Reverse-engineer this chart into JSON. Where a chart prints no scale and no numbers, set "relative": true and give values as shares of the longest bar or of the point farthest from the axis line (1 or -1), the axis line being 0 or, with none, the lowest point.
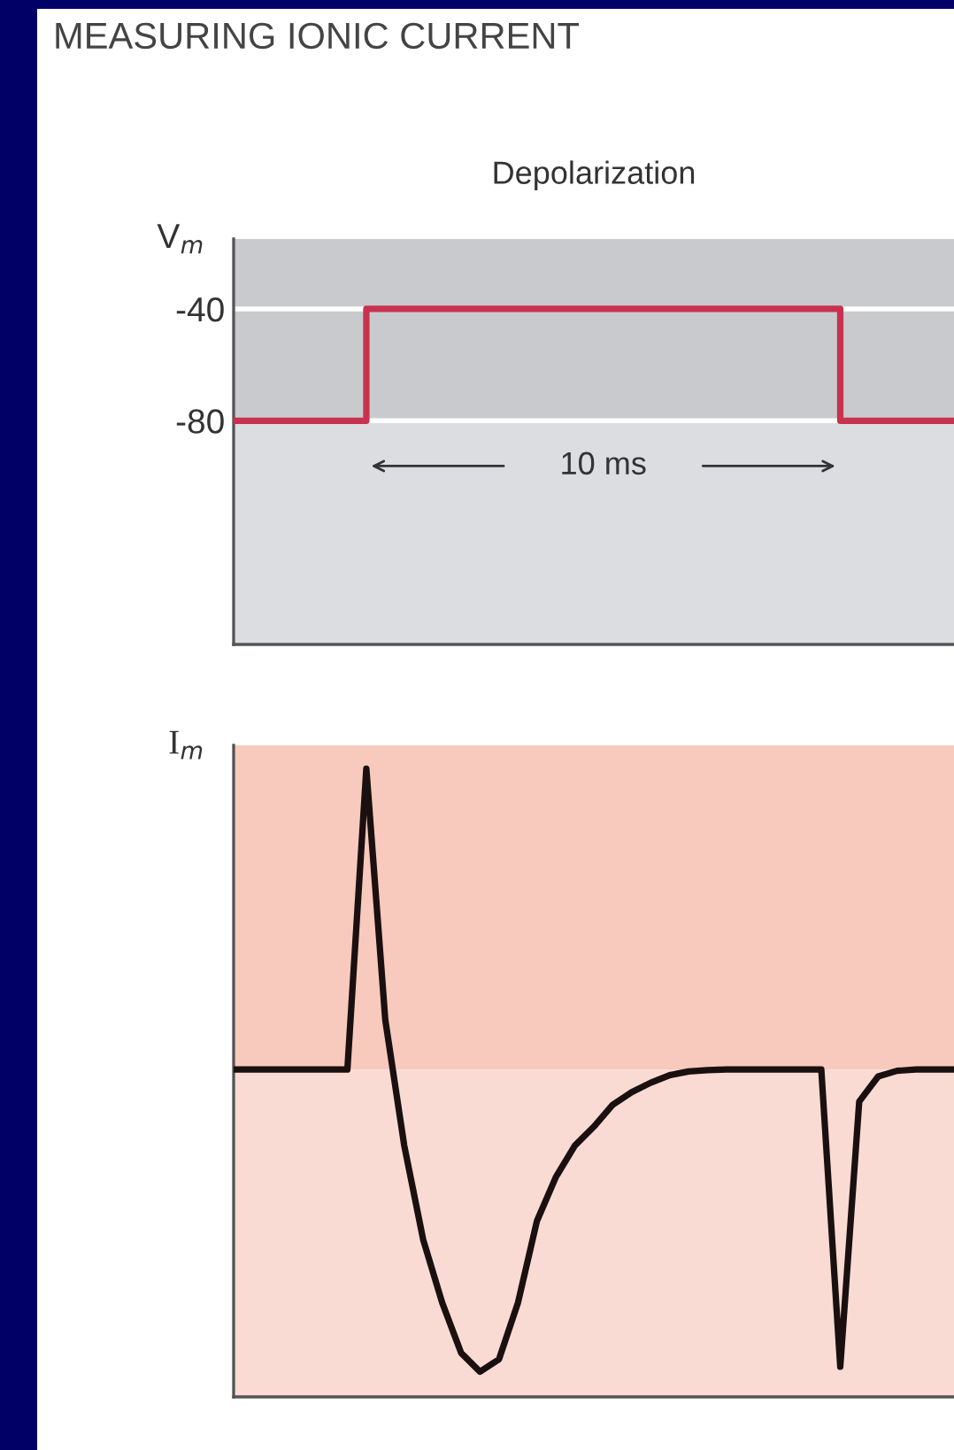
{
  "chart_data": [
    {
      "type": "step",
      "title": "MEASURING IONIC CURRENT",
      "subtitle": "Depolarization",
      "ylabel": "V$_{m}$",
      "categories": [
        null,
        null,
        null,
        null,
        null,
        null,
        null,
        null,
        null,
        null,
        null,
        null,
        null,
        null,
        null,
        null,
        null,
        null,
        null,
        null,
        null,
        null,
        null,
        null,
        null,
        null,
        null,
        null,
        null,
        null,
        null,
        null,
        null,
        null,
        null,
        null,
        null,
        null,
        null
      ],
      "series": [
        {
          "color": "#c8324f",
          "values": [
            -80,
            -80,
            -80,
            -80,
            -80,
            -80,
            -80,
            -40,
            -40,
            -40,
            -40,
            -40,
            -40,
            -40,
            -40,
            -40,
            -40,
            -40,
            -40,
            -40,
            -40,
            -40,
            -40,
            -40,
            -40,
            -40,
            -40,
            -40,
            -40,
            -40,
            -40,
            -40,
            -80,
            -80,
            -80,
            -80,
            -80,
            -80,
            -80
          ]
        }
      ],
      "ylim": [
        -160,
        -15
      ],
      "yticks": [
        -80,
        -40
      ],
      "tick_labels": "y",
      "grid": "y",
      "bands": [
        {
          "axis": "y",
          "from": -80,
          "to": -15,
          "color": "#c9cacd"
        },
        {
          "axis": "y",
          "from": -160,
          "to": -80,
          "color": "#dcdde0"
        }
      ],
      "annotations": [
        "10 ms"
      ]
    },
    {
      "type": "line",
      "ylabel": "I$_{m}$",
      "relative": true,
      "tick_labels": false,
      "categories": [
        null,
        null,
        null,
        null,
        null,
        null,
        null,
        null,
        null,
        null,
        null,
        null,
        null,
        null,
        null,
        null,
        null,
        null,
        null,
        null,
        null,
        null,
        null,
        null,
        null,
        null,
        null,
        null,
        null,
        null,
        null,
        null,
        null,
        null,
        null,
        null,
        null,
        null,
        null
      ],
      "series": [
        {
          "color": "#1a1010",
          "values": [
            0.521,
            0.521,
            0.521,
            0.521,
            0.521,
            0.521,
            0.521,
            1.0,
            0.6,
            0.4,
            0.25,
            0.15,
            0.07,
            0.04,
            0.06,
            0.15,
            0.28,
            0.35,
            0.4,
            0.43,
            0.465,
            0.485,
            0.5,
            0.512,
            0.518,
            0.52,
            0.521,
            0.521,
            0.521,
            0.521,
            0.521,
            0.521,
            0.048,
            0.47,
            0.51,
            0.519,
            0.521,
            0.521,
            0.521
          ]
        }
      ],
      "bands": [
        {
          "axis": "y",
          "from": 0.521,
          "to": 1.037,
          "color": "#f8c9bd"
        },
        {
          "axis": "y",
          "from": 0,
          "to": 0.521,
          "color": "#fadbd4"
        }
      ]
    }
  ]
}
